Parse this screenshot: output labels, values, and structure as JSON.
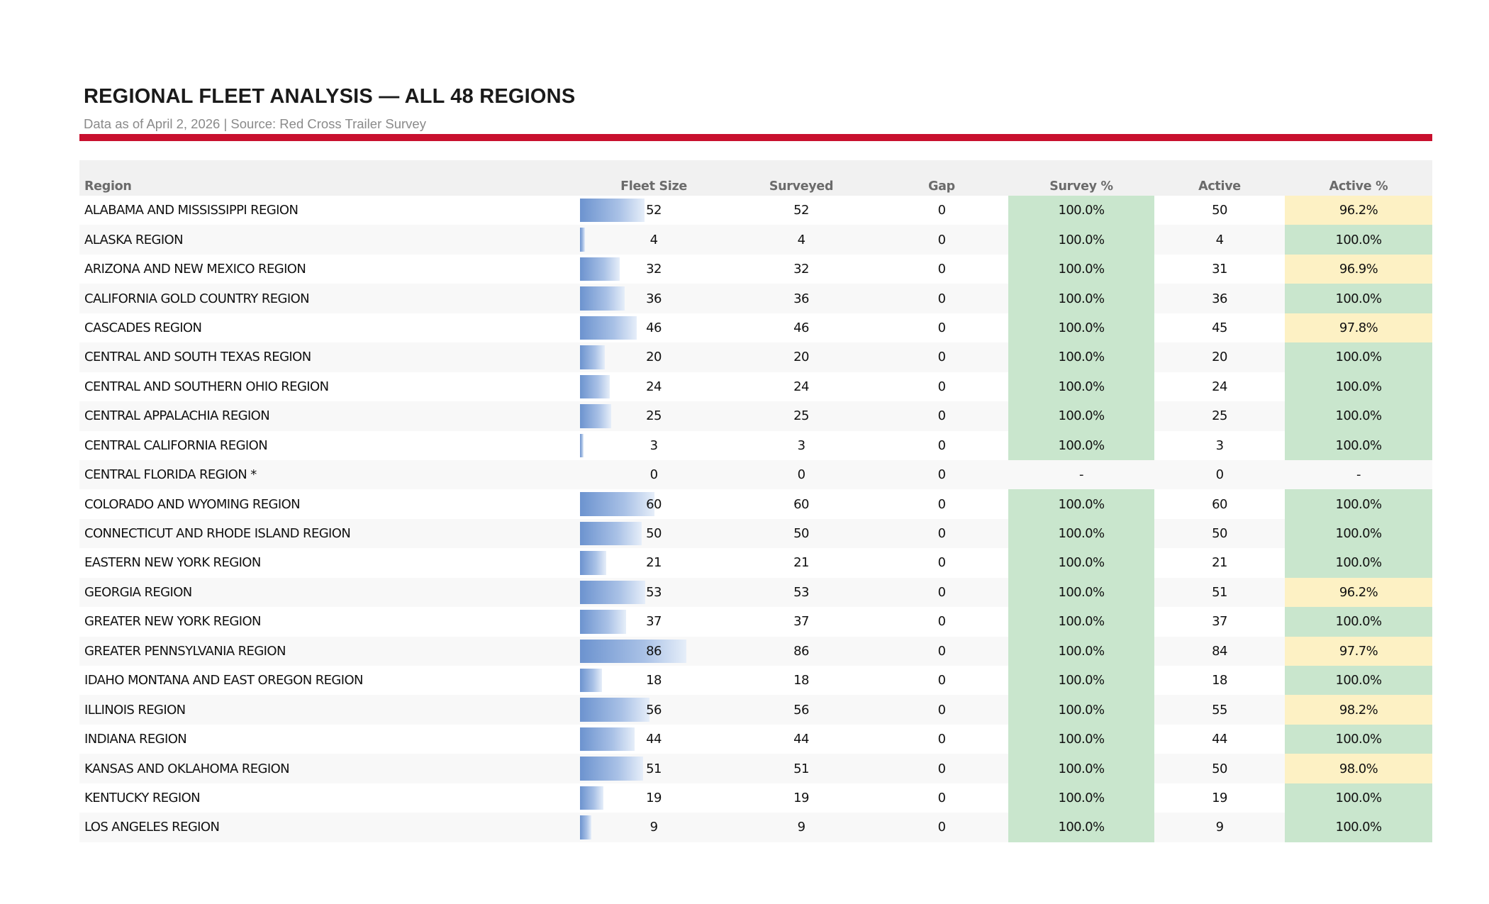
{
  "header": {
    "title": "REGIONAL FLEET ANALYSIS — ALL 48 REGIONS",
    "subtitle": "Data as of April 2, 2026  |  Source: Red Cross Trailer Survey"
  },
  "table": {
    "columns": [
      "Region",
      "Fleet Size",
      "Surveyed",
      "Gap",
      "Survey %",
      "Active",
      "Active %"
    ],
    "max_fleet": 86,
    "colors": {
      "good": "#c9e6cd",
      "warn": "#fdf1c4",
      "bar": "#6c93cf",
      "rule": "#c8102e"
    },
    "rows": [
      {
        "region": "ALABAMA AND MISSISSIPPI REGION",
        "fleet": 52,
        "surveyed": "52",
        "gap": "0",
        "survey_pct": "100.0%",
        "active": "50",
        "active_pct": "96.2%",
        "survey_status": "good",
        "active_status": "warn"
      },
      {
        "region": "ALASKA REGION",
        "fleet": 4,
        "surveyed": "4",
        "gap": "0",
        "survey_pct": "100.0%",
        "active": "4",
        "active_pct": "100.0%",
        "survey_status": "good",
        "active_status": "good"
      },
      {
        "region": "ARIZONA AND NEW MEXICO REGION",
        "fleet": 32,
        "surveyed": "32",
        "gap": "0",
        "survey_pct": "100.0%",
        "active": "31",
        "active_pct": "96.9%",
        "survey_status": "good",
        "active_status": "warn"
      },
      {
        "region": "CALIFORNIA GOLD COUNTRY REGION",
        "fleet": 36,
        "surveyed": "36",
        "gap": "0",
        "survey_pct": "100.0%",
        "active": "36",
        "active_pct": "100.0%",
        "survey_status": "good",
        "active_status": "good"
      },
      {
        "region": "CASCADES REGION",
        "fleet": 46,
        "surveyed": "46",
        "gap": "0",
        "survey_pct": "100.0%",
        "active": "45",
        "active_pct": "97.8%",
        "survey_status": "good",
        "active_status": "warn"
      },
      {
        "region": "CENTRAL AND SOUTH TEXAS REGION",
        "fleet": 20,
        "surveyed": "20",
        "gap": "0",
        "survey_pct": "100.0%",
        "active": "20",
        "active_pct": "100.0%",
        "survey_status": "good",
        "active_status": "good"
      },
      {
        "region": "CENTRAL AND SOUTHERN OHIO REGION",
        "fleet": 24,
        "surveyed": "24",
        "gap": "0",
        "survey_pct": "100.0%",
        "active": "24",
        "active_pct": "100.0%",
        "survey_status": "good",
        "active_status": "good"
      },
      {
        "region": "CENTRAL APPALACHIA REGION",
        "fleet": 25,
        "surveyed": "25",
        "gap": "0",
        "survey_pct": "100.0%",
        "active": "25",
        "active_pct": "100.0%",
        "survey_status": "good",
        "active_status": "good"
      },
      {
        "region": "CENTRAL CALIFORNIA REGION",
        "fleet": 3,
        "surveyed": "3",
        "gap": "0",
        "survey_pct": "100.0%",
        "active": "3",
        "active_pct": "100.0%",
        "survey_status": "good",
        "active_status": "good"
      },
      {
        "region": "CENTRAL FLORIDA REGION *",
        "fleet": 0,
        "surveyed": "0",
        "gap": "0",
        "survey_pct": "-",
        "active": "0",
        "active_pct": "-",
        "survey_status": "none",
        "active_status": "none"
      },
      {
        "region": "COLORADO AND WYOMING REGION",
        "fleet": 60,
        "surveyed": "60",
        "gap": "0",
        "survey_pct": "100.0%",
        "active": "60",
        "active_pct": "100.0%",
        "survey_status": "good",
        "active_status": "good"
      },
      {
        "region": "CONNECTICUT AND RHODE ISLAND REGION",
        "fleet": 50,
        "surveyed": "50",
        "gap": "0",
        "survey_pct": "100.0%",
        "active": "50",
        "active_pct": "100.0%",
        "survey_status": "good",
        "active_status": "good"
      },
      {
        "region": "EASTERN NEW YORK REGION",
        "fleet": 21,
        "surveyed": "21",
        "gap": "0",
        "survey_pct": "100.0%",
        "active": "21",
        "active_pct": "100.0%",
        "survey_status": "good",
        "active_status": "good"
      },
      {
        "region": "GEORGIA REGION",
        "fleet": 53,
        "surveyed": "53",
        "gap": "0",
        "survey_pct": "100.0%",
        "active": "51",
        "active_pct": "96.2%",
        "survey_status": "good",
        "active_status": "warn"
      },
      {
        "region": "GREATER NEW YORK REGION",
        "fleet": 37,
        "surveyed": "37",
        "gap": "0",
        "survey_pct": "100.0%",
        "active": "37",
        "active_pct": "100.0%",
        "survey_status": "good",
        "active_status": "good"
      },
      {
        "region": "GREATER PENNSYLVANIA REGION",
        "fleet": 86,
        "surveyed": "86",
        "gap": "0",
        "survey_pct": "100.0%",
        "active": "84",
        "active_pct": "97.7%",
        "survey_status": "good",
        "active_status": "warn"
      },
      {
        "region": "IDAHO MONTANA AND EAST OREGON REGION",
        "fleet": 18,
        "surveyed": "18",
        "gap": "0",
        "survey_pct": "100.0%",
        "active": "18",
        "active_pct": "100.0%",
        "survey_status": "good",
        "active_status": "good"
      },
      {
        "region": "ILLINOIS REGION",
        "fleet": 56,
        "surveyed": "56",
        "gap": "0",
        "survey_pct": "100.0%",
        "active": "55",
        "active_pct": "98.2%",
        "survey_status": "good",
        "active_status": "warn"
      },
      {
        "region": "INDIANA REGION",
        "fleet": 44,
        "surveyed": "44",
        "gap": "0",
        "survey_pct": "100.0%",
        "active": "44",
        "active_pct": "100.0%",
        "survey_status": "good",
        "active_status": "good"
      },
      {
        "region": "KANSAS AND OKLAHOMA REGION",
        "fleet": 51,
        "surveyed": "51",
        "gap": "0",
        "survey_pct": "100.0%",
        "active": "50",
        "active_pct": "98.0%",
        "survey_status": "good",
        "active_status": "warn"
      },
      {
        "region": "KENTUCKY REGION",
        "fleet": 19,
        "surveyed": "19",
        "gap": "0",
        "survey_pct": "100.0%",
        "active": "19",
        "active_pct": "100.0%",
        "survey_status": "good",
        "active_status": "good"
      },
      {
        "region": "LOS ANGELES REGION",
        "fleet": 9,
        "surveyed": "9",
        "gap": "0",
        "survey_pct": "100.0%",
        "active": "9",
        "active_pct": "100.0%",
        "survey_status": "good",
        "active_status": "good"
      }
    ]
  }
}
